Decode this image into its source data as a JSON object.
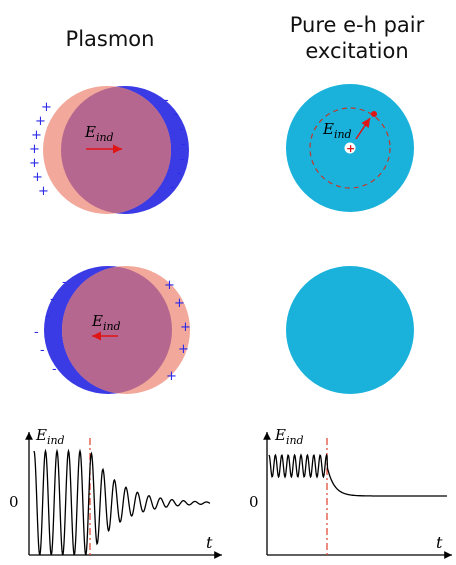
{
  "titles": {
    "left": "Plasmon",
    "right_line1": "Pure e-h pair",
    "right_line2": "excitation"
  },
  "field_label": {
    "base": "E",
    "subscript": "ind"
  },
  "signs": {
    "plus": "+",
    "minus": "-"
  },
  "graph": {
    "zero_label": "0",
    "time_label": "t"
  },
  "colors": {
    "plasmon_fill": "#b6678f",
    "positive_charge_fill": "#f2a89a",
    "negative_charge_fill": "#3b3be6",
    "eh_disk": "#1ab2db",
    "field_arrow": "#e01515",
    "sign_color": "#2a2ae8",
    "cutoff_line": "#e0402a"
  }
}
